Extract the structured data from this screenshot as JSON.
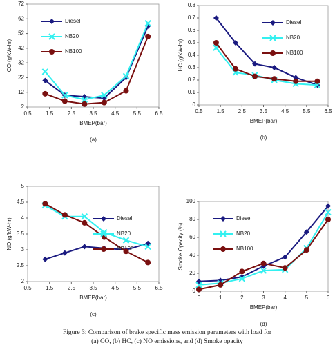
{
  "chart_data": [
    {
      "type": "line",
      "label": "(a)",
      "xlabel": "BMEP(bar)",
      "ylabel": "CO (g/kW-hr)",
      "x": [
        1.3,
        2.2,
        3.1,
        4,
        5,
        6
      ],
      "series": [
        {
          "name": "Diesel",
          "color": "#1a1a80",
          "values": [
            20,
            10,
            9,
            8,
            22,
            57
          ]
        },
        {
          "name": "NB20",
          "color": "#33f0f0",
          "values": [
            26,
            10,
            7,
            10,
            23,
            59
          ]
        },
        {
          "name": "NB100",
          "color": "#7a1010",
          "values": [
            11,
            6,
            4,
            5,
            13,
            50
          ]
        }
      ],
      "xlim": [
        0.5,
        6.5
      ],
      "xticks": [
        0.5,
        1.5,
        2.5,
        3.5,
        4.5,
        5.5,
        6.5
      ],
      "ylim": [
        2,
        72
      ],
      "yticks": [
        2,
        12,
        22,
        32,
        42,
        52,
        62,
        72
      ],
      "grid": false,
      "legend": "upper left"
    },
    {
      "type": "line",
      "label": "(b)",
      "xlabel": "BMEP(bar)",
      "ylabel": "HC (g/kW-hr)",
      "x": [
        1.3,
        2.2,
        3.1,
        4,
        5,
        6
      ],
      "series": [
        {
          "name": "Diesel",
          "color": "#1a1a80",
          "values": [
            0.7,
            0.5,
            0.33,
            0.3,
            0.22,
            0.16
          ]
        },
        {
          "name": "NB20",
          "color": "#33f0f0",
          "values": [
            0.46,
            0.26,
            0.24,
            0.2,
            0.17,
            0.16
          ]
        },
        {
          "name": "NB100",
          "color": "#7a1010",
          "values": [
            0.5,
            0.29,
            0.23,
            0.21,
            0.19,
            0.19
          ]
        }
      ],
      "xlim": [
        0.5,
        6.5
      ],
      "xticks": [
        0.5,
        1.5,
        2.5,
        3.5,
        4.5,
        5.5,
        6.5
      ],
      "ylim": [
        0,
        0.8
      ],
      "yticks": [
        0,
        0.1,
        0.2,
        0.3,
        0.4,
        0.5,
        0.6,
        0.7,
        0.8
      ],
      "grid": false,
      "legend": "upper right"
    },
    {
      "type": "line",
      "label": "(c)",
      "xlabel": "BMEP(bar)",
      "ylabel": "NO (g/kW-hr)",
      "x": [
        1.3,
        2.2,
        3.1,
        4,
        5,
        6
      ],
      "series": [
        {
          "name": "Diesel",
          "color": "#1a1a80",
          "values": [
            2.7,
            2.9,
            3.1,
            3.05,
            3,
            3.2
          ]
        },
        {
          "name": "NB20",
          "color": "#33f0f0",
          "values": [
            4.4,
            4.05,
            4.05,
            3.55,
            3.3,
            3.1
          ]
        },
        {
          "name": "NB100",
          "color": "#7a1010",
          "values": [
            4.45,
            4.1,
            3.85,
            3.4,
            2.95,
            2.6
          ]
        }
      ],
      "xlim": [
        0.5,
        6.5
      ],
      "xticks": [
        0.5,
        1.5,
        2.5,
        3.5,
        4.5,
        5.5,
        6.5
      ],
      "ylim": [
        2,
        5
      ],
      "yticks": [
        2,
        2.5,
        3,
        3.5,
        4,
        4.5,
        5
      ],
      "grid": false,
      "legend": "right"
    },
    {
      "type": "line",
      "label": "(d)",
      "xlabel": "BMEP(bar)",
      "ylabel": "Smoke  Opacity (%)",
      "x": [
        0,
        1,
        2,
        3,
        4,
        5,
        6
      ],
      "series": [
        {
          "name": "Diesel",
          "color": "#1a1a80",
          "values": [
            11,
            12,
            16,
            28,
            38,
            66,
            95
          ]
        },
        {
          "name": "NB20",
          "color": "#33f0f0",
          "values": [
            7,
            9,
            14,
            23,
            24,
            48,
            88
          ]
        },
        {
          "name": "NB100",
          "color": "#7a1010",
          "values": [
            2,
            7,
            22,
            31,
            26,
            46,
            80
          ]
        }
      ],
      "xlim": [
        0,
        6
      ],
      "xticks": [
        0,
        1,
        2,
        3,
        4,
        5,
        6
      ],
      "ylim": [
        0,
        100
      ],
      "yticks": [
        0,
        20,
        40,
        60,
        80,
        100
      ],
      "grid": false,
      "legend": "upper left"
    }
  ],
  "caption": [
    "Figure 3: Comparison of brake specific mass emission parameters with load  for",
    "(a) CO, (b) HC,  (c) NO emissions, and (d) Smoke opacity"
  ]
}
